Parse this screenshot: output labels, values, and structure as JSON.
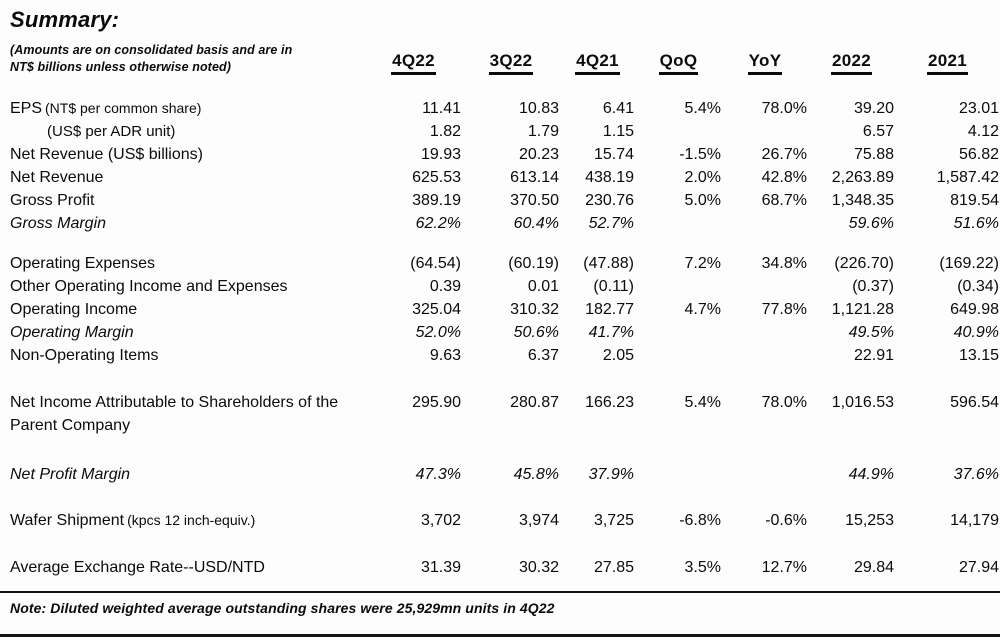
{
  "page": {
    "title": "Summary:",
    "subtitle_line1": "(Amounts are on consolidated basis and are in",
    "subtitle_line2": "NT$ billions unless otherwise noted)",
    "note": "Note: Diluted weighted average outstanding shares were 25,929mn units in 4Q22"
  },
  "table": {
    "columns": [
      "4Q22",
      "3Q22",
      "4Q21",
      "QoQ",
      "YoY",
      "2022",
      "2021"
    ],
    "rows": [
      {
        "label": "EPS",
        "label_suffix": "(NT$ per common share)",
        "values": [
          "11.41",
          "10.83",
          "6.41",
          "5.4%",
          "78.0%",
          "39.20",
          "23.01"
        ]
      },
      {
        "label": "",
        "label_suffix": "(US$ per ADR unit)",
        "values": [
          "1.82",
          "1.79",
          "1.15",
          "",
          "",
          "6.57",
          "4.12"
        ]
      },
      {
        "label": "Net Revenue (US$ billions)",
        "label_suffix": "",
        "values": [
          "19.93",
          "20.23",
          "15.74",
          "-1.5%",
          "26.7%",
          "75.88",
          "56.82"
        ]
      },
      {
        "label": "Net Revenue",
        "label_suffix": "",
        "values": [
          "625.53",
          "613.14",
          "438.19",
          "2.0%",
          "42.8%",
          "2,263.89",
          "1,587.42"
        ]
      },
      {
        "label": "Gross Profit",
        "label_suffix": "",
        "values": [
          "389.19",
          "370.50",
          "230.76",
          "5.0%",
          "68.7%",
          "1,348.35",
          "819.54"
        ]
      },
      {
        "label": "Gross Margin",
        "label_suffix": "",
        "italic": true,
        "values": [
          "62.2%",
          "60.4%",
          "52.7%",
          "",
          "",
          "59.6%",
          "51.6%"
        ]
      },
      {
        "label": "Operating Expenses",
        "label_suffix": "",
        "values": [
          "(64.54)",
          "(60.19)",
          "(47.88)",
          "7.2%",
          "34.8%",
          "(226.70)",
          "(169.22)"
        ]
      },
      {
        "label": "Other Operating Income and Expenses",
        "label_suffix": "",
        "values": [
          "0.39",
          "0.01",
          "(0.11)",
          "",
          "",
          "(0.37)",
          "(0.34)"
        ]
      },
      {
        "label": "Operating Income",
        "label_suffix": "",
        "values": [
          "325.04",
          "310.32",
          "182.77",
          "4.7%",
          "77.8%",
          "1,121.28",
          "649.98"
        ]
      },
      {
        "label": "Operating Margin",
        "label_suffix": "",
        "italic": true,
        "values": [
          "52.0%",
          "50.6%",
          "41.7%",
          "",
          "",
          "49.5%",
          "40.9%"
        ]
      },
      {
        "label": "Non-Operating Items",
        "label_suffix": "",
        "values": [
          "9.63",
          "6.37",
          "2.05",
          "",
          "",
          "22.91",
          "13.15"
        ]
      },
      {
        "label": "Net Income Attributable to Shareholders of the Parent Company",
        "label_suffix": "",
        "values": [
          "295.90",
          "280.87",
          "166.23",
          "5.4%",
          "78.0%",
          "1,016.53",
          "596.54"
        ]
      },
      {
        "label": "Net Profit Margin",
        "label_suffix": "",
        "italic": true,
        "values": [
          "47.3%",
          "45.8%",
          "37.9%",
          "",
          "",
          "44.9%",
          "37.6%"
        ]
      },
      {
        "label": "Wafer Shipment",
        "label_suffix": "(kpcs 12 inch-equiv.)",
        "values": [
          "3,702",
          "3,974",
          "3,725",
          "-6.8%",
          "-0.6%",
          "15,253",
          "14,179"
        ]
      },
      {
        "label": "Average Exchange Rate--USD/NTD",
        "label_suffix": "",
        "values": [
          "31.39",
          "30.32",
          "27.85",
          "3.5%",
          "12.7%",
          "29.84",
          "27.94"
        ]
      }
    ]
  }
}
